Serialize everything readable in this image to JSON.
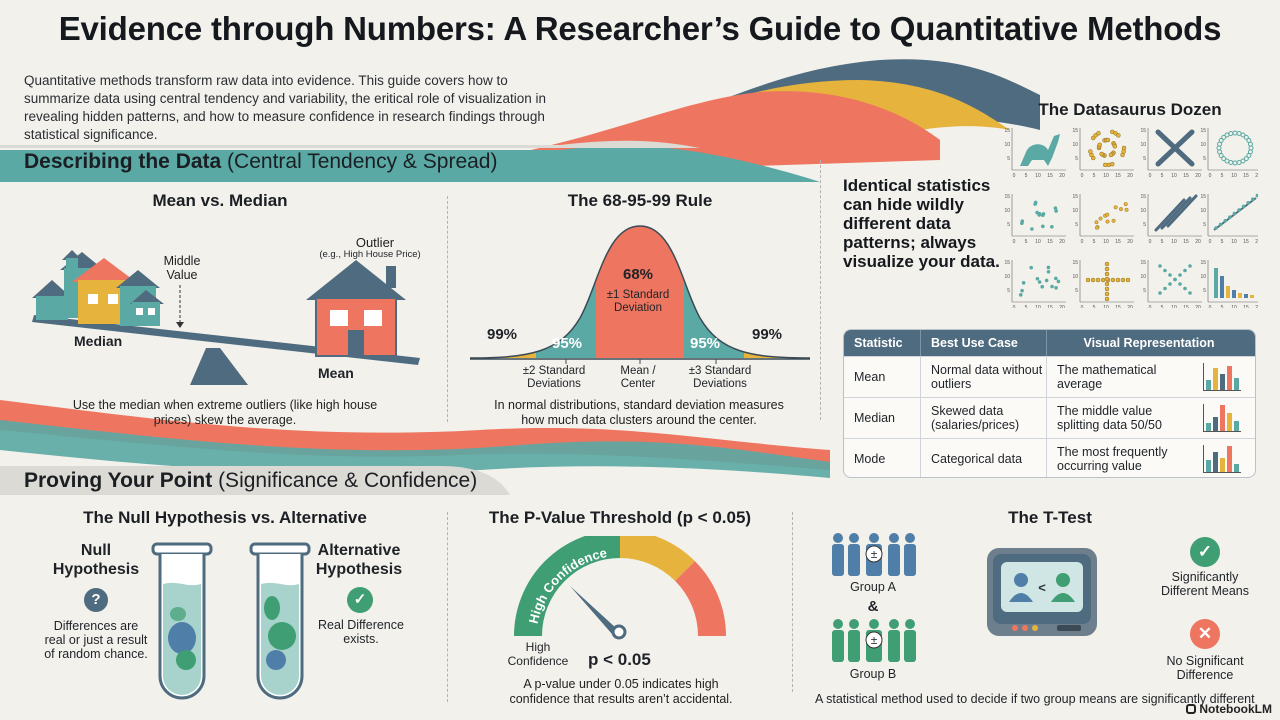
{
  "header": {
    "title": "Evidence through Numbers: A Researcher’s Guide to Quantitative Methods",
    "intro": "Quantitative methods transform raw data into evidence. This guide covers how to summarize data using central tendency and variability, the eritical role of visualization in revealing hidden patterns, and how to measure confidence in research findings through statistical significance."
  },
  "section1": {
    "title_bold": "Describing the Data",
    "title_rest": " (Central Tendency & Spread)",
    "mean_median": {
      "heading": "Mean vs. Median",
      "middle_value": "Middle Value",
      "outlier": "Outlier",
      "outlier_note": "(e.g., High House Price)",
      "median_label": "Median",
      "mean_label": "Mean",
      "caption": "Use the median when extreme outliers (like high house prices) skew the average."
    },
    "rule": {
      "heading": "The 68-95-99 Rule",
      "center_pct": "68%",
      "center_desc": "±1 Standard Deviation",
      "pct95_left": "95%",
      "pct95_right": "95%",
      "pct99_left": "99%",
      "pct99_right": "99%",
      "label_left": "±2 Standard Deviations",
      "label_center": "Mean / Center",
      "label_right": "±3 Standard Deviations",
      "caption": "In normal distributions, standard deviation measures how much data clusters around the center."
    }
  },
  "datasaurus": {
    "heading": "The Datasaurus Dozen",
    "message": "Identical statistics can hide wildly different data patterns; always visualize your data.",
    "y_ticks": [
      "15",
      "10",
      "5"
    ],
    "x_ticks": [
      "0",
      "5",
      "10",
      "15",
      "20"
    ]
  },
  "stats_table": {
    "headers": [
      "Statistic",
      "Best Use Case",
      "Visual Representation"
    ],
    "rows": [
      {
        "stat": "Mean",
        "use": "Normal data without outliers",
        "visual": "The mathematical average"
      },
      {
        "stat": "Median",
        "use": "Skewed data (salaries/prices)",
        "visual": "The middle value splitting data 50/50"
      },
      {
        "stat": "Mode",
        "use": "Categorical data",
        "visual": "The most frequently occurring value"
      }
    ]
  },
  "section2": {
    "title_bold": "Proving Your Point",
    "title_rest": " (Significance & Confidence)",
    "hypothesis": {
      "heading": "The Null Hypothesis vs. Alternative",
      "null_title": "Null Hypothesis",
      "null_desc": "Differences are real or just a result of random chance.",
      "alt_title": "Alternative Hypothesis",
      "alt_desc": "Real Difference exists."
    },
    "pvalue": {
      "heading": "The P-Value Threshold (p < 0.05)",
      "arc_label": "High Confidence",
      "high_conf": "High Confidence",
      "threshold": "p < 0.05",
      "caption": "A p-value under 0.05 indicates high confidence that results aren’t accidental."
    },
    "ttest": {
      "heading": "The T-Test",
      "group_a": "Group A",
      "amp": "&",
      "group_b": "Group B",
      "sig": "Significantly Different Means",
      "nosig": "No Significant Difference",
      "caption": "A statistical method used to decide if two group means are significantly different"
    }
  },
  "footer": {
    "brand": "NotebookLM"
  },
  "colors": {
    "teal": "#5aa9a4",
    "coral": "#ee7660",
    "gold": "#e6b33c",
    "slate": "#4f6b7f",
    "green": "#3f9e73"
  }
}
